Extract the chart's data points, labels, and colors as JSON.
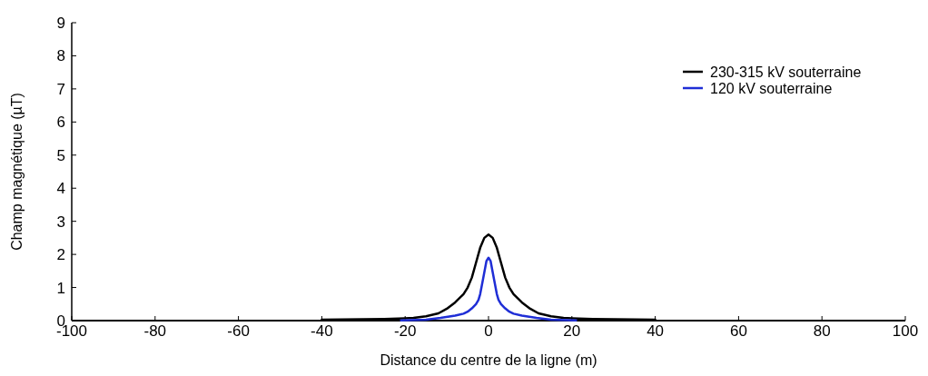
{
  "chart_data": {
    "type": "line",
    "xlabel": "Distance du centre de la ligne (m)",
    "ylabel": "Champ magnétique (µT)",
    "xlim": [
      -100,
      100
    ],
    "xticks": [
      -100,
      -80,
      -60,
      -40,
      -20,
      0,
      20,
      40,
      60,
      80,
      100
    ],
    "ylim": [
      0,
      9
    ],
    "yticks": [
      0,
      1,
      2,
      3,
      4,
      5,
      6,
      7,
      8,
      9
    ],
    "grid": false,
    "legend": "top right",
    "marker": "none",
    "line_style": "solid",
    "series": [
      {
        "name": "230-315 kV souterraine",
        "color": "#000000",
        "x": [
          -40,
          -30,
          -25,
          -20,
          -18,
          -15,
          -12,
          -10,
          -8,
          -6,
          -5,
          -4,
          -3,
          -2,
          -1,
          0,
          1,
          2,
          3,
          4,
          5,
          6,
          8,
          10,
          12,
          15,
          18,
          20,
          25,
          30,
          40
        ],
        "values": [
          0.03,
          0.04,
          0.05,
          0.07,
          0.08,
          0.13,
          0.22,
          0.36,
          0.55,
          0.8,
          1.0,
          1.3,
          1.75,
          2.2,
          2.5,
          2.6,
          2.5,
          2.2,
          1.75,
          1.3,
          1.0,
          0.8,
          0.55,
          0.36,
          0.22,
          0.13,
          0.08,
          0.07,
          0.05,
          0.04,
          0.03
        ]
      },
      {
        "name": "120 kV souterraine",
        "color": "#1f2ed6",
        "x": [
          -21,
          -15,
          -11.5,
          -8,
          -6,
          -5,
          -4,
          -3,
          -2.4,
          -2,
          -1.3,
          -0.5,
          0,
          0.5,
          1.3,
          2,
          2.4,
          3,
          4,
          5,
          6,
          8,
          11.5,
          15,
          21
        ],
        "values": [
          0.01,
          0.03,
          0.08,
          0.15,
          0.21,
          0.27,
          0.37,
          0.5,
          0.63,
          0.8,
          1.26,
          1.8,
          1.9,
          1.8,
          1.26,
          0.8,
          0.63,
          0.5,
          0.37,
          0.27,
          0.21,
          0.15,
          0.08,
          0.03,
          0.01
        ]
      }
    ]
  }
}
